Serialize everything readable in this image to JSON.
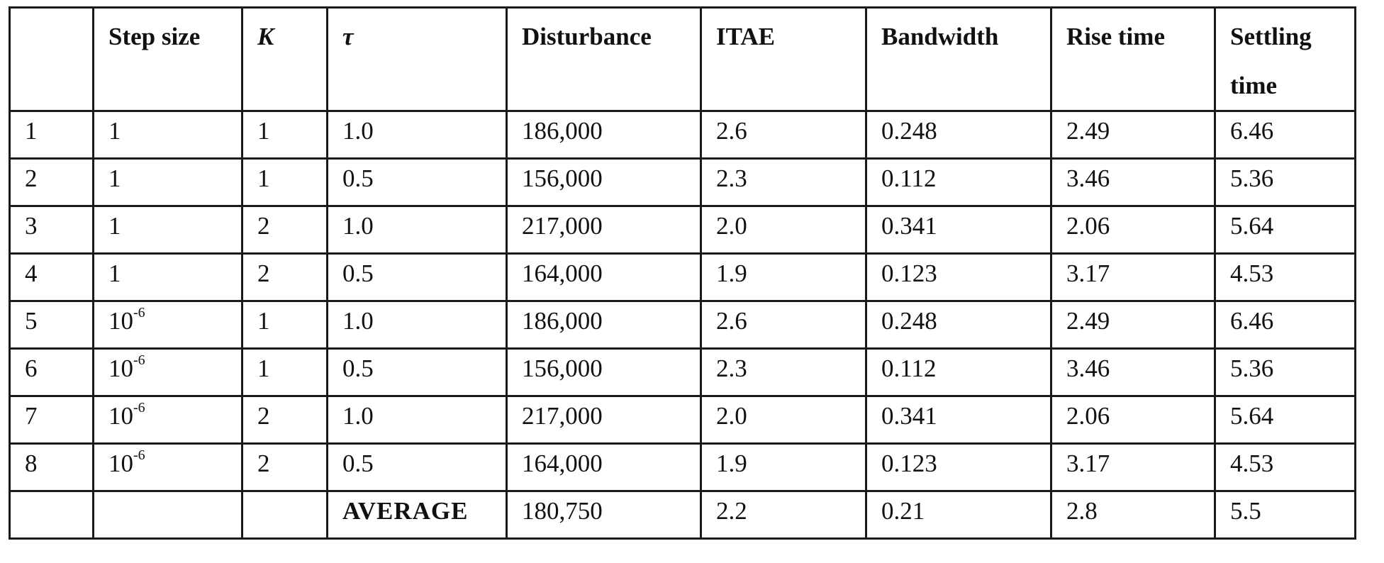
{
  "table": {
    "headers": [
      "",
      "Step size",
      "K",
      "τ",
      "Disturbance",
      "ITAE",
      "Bandwidth",
      "Rise time",
      "Settling time"
    ],
    "rows": [
      {
        "n": "1",
        "step_base": "1",
        "step_exp": "",
        "K": "1",
        "tau": "1.0",
        "disturbance": "186,000",
        "itae": "2.6",
        "bandwidth": "0.248",
        "rise": "2.49",
        "settling": "6.46"
      },
      {
        "n": "2",
        "step_base": "1",
        "step_exp": "",
        "K": "1",
        "tau": "0.5",
        "disturbance": "156,000",
        "itae": "2.3",
        "bandwidth": "0.112",
        "rise": "3.46",
        "settling": "5.36"
      },
      {
        "n": "3",
        "step_base": "1",
        "step_exp": "",
        "K": "2",
        "tau": "1.0",
        "disturbance": "217,000",
        "itae": "2.0",
        "bandwidth": "0.341",
        "rise": "2.06",
        "settling": "5.64"
      },
      {
        "n": "4",
        "step_base": "1",
        "step_exp": "",
        "K": "2",
        "tau": "0.5",
        "disturbance": "164,000",
        "itae": "1.9",
        "bandwidth": "0.123",
        "rise": "3.17",
        "settling": "4.53"
      },
      {
        "n": "5",
        "step_base": "10",
        "step_exp": "-6",
        "K": "1",
        "tau": "1.0",
        "disturbance": "186,000",
        "itae": "2.6",
        "bandwidth": "0.248",
        "rise": "2.49",
        "settling": "6.46"
      },
      {
        "n": "6",
        "step_base": "10",
        "step_exp": "-6",
        "K": "1",
        "tau": "0.5",
        "disturbance": "156,000",
        "itae": "2.3",
        "bandwidth": "0.112",
        "rise": "3.46",
        "settling": "5.36"
      },
      {
        "n": "7",
        "step_base": "10",
        "step_exp": "-6",
        "K": "2",
        "tau": "1.0",
        "disturbance": "217,000",
        "itae": "2.0",
        "bandwidth": "0.341",
        "rise": "2.06",
        "settling": "5.64"
      },
      {
        "n": "8",
        "step_base": "10",
        "step_exp": "-6",
        "K": "2",
        "tau": "0.5",
        "disturbance": "164,000",
        "itae": "1.9",
        "bandwidth": "0.123",
        "rise": "3.17",
        "settling": "4.53"
      }
    ],
    "average": {
      "label": "AVERAGE",
      "disturbance": "180,750",
      "itae": "2.2",
      "bandwidth": "0.21",
      "rise": "2.8",
      "settling": "5.5"
    }
  }
}
